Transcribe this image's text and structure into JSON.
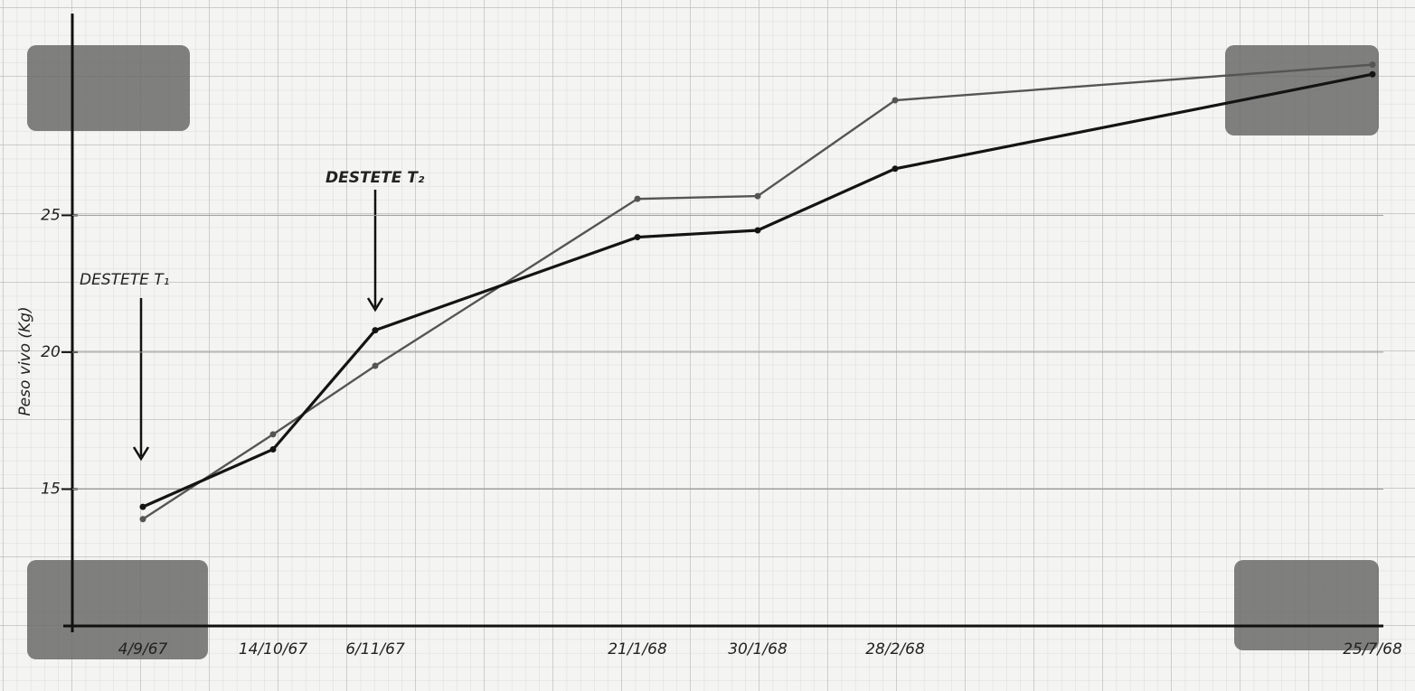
{
  "chart_data": {
    "type": "line",
    "y_label": "Peso vivo (Kg)",
    "categories": [
      "4/9/67",
      "14/10/67",
      "6/11/67",
      "21/1/68",
      "30/1/68",
      "28/2/68",
      "25/7/68"
    ],
    "series": [
      {
        "color": "#555555",
        "values": [
          13.9,
          17.0,
          19.5,
          25.6,
          25.7,
          29.2,
          30.5
        ]
      },
      {
        "color": "#141414",
        "values": [
          14.35,
          16.45,
          20.8,
          24.2,
          24.45,
          26.7,
          30.15
        ]
      }
    ],
    "ylim": [
      10,
      32.5
    ],
    "yticks": [
      15,
      20,
      25
    ],
    "grid": true,
    "annotations": [
      "DESTETE T₁",
      "DESTETE T₂"
    ]
  }
}
